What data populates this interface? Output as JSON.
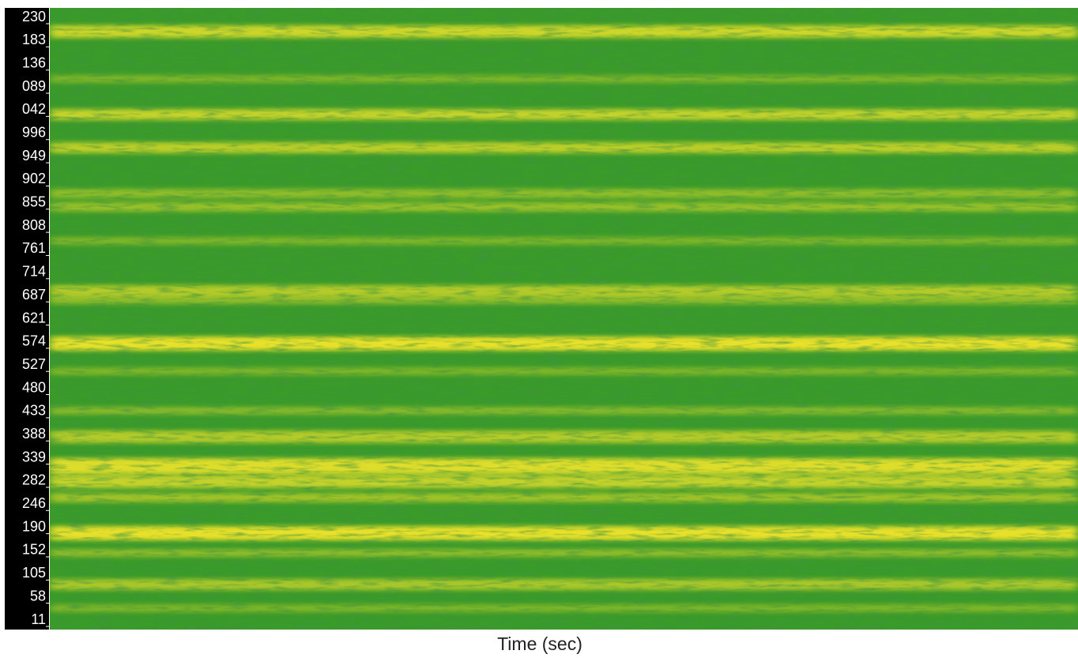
{
  "y_labels": [
    "230",
    "183",
    "136",
    "089",
    "042",
    "996",
    "949",
    "902",
    "855",
    "808",
    "761",
    "714",
    "687",
    "621",
    "574",
    "527",
    "480",
    "433",
    "388",
    "339",
    "282",
    "246",
    "190",
    "152",
    "105",
    "58",
    "11"
  ],
  "x_label": "Time (sec)"
}
